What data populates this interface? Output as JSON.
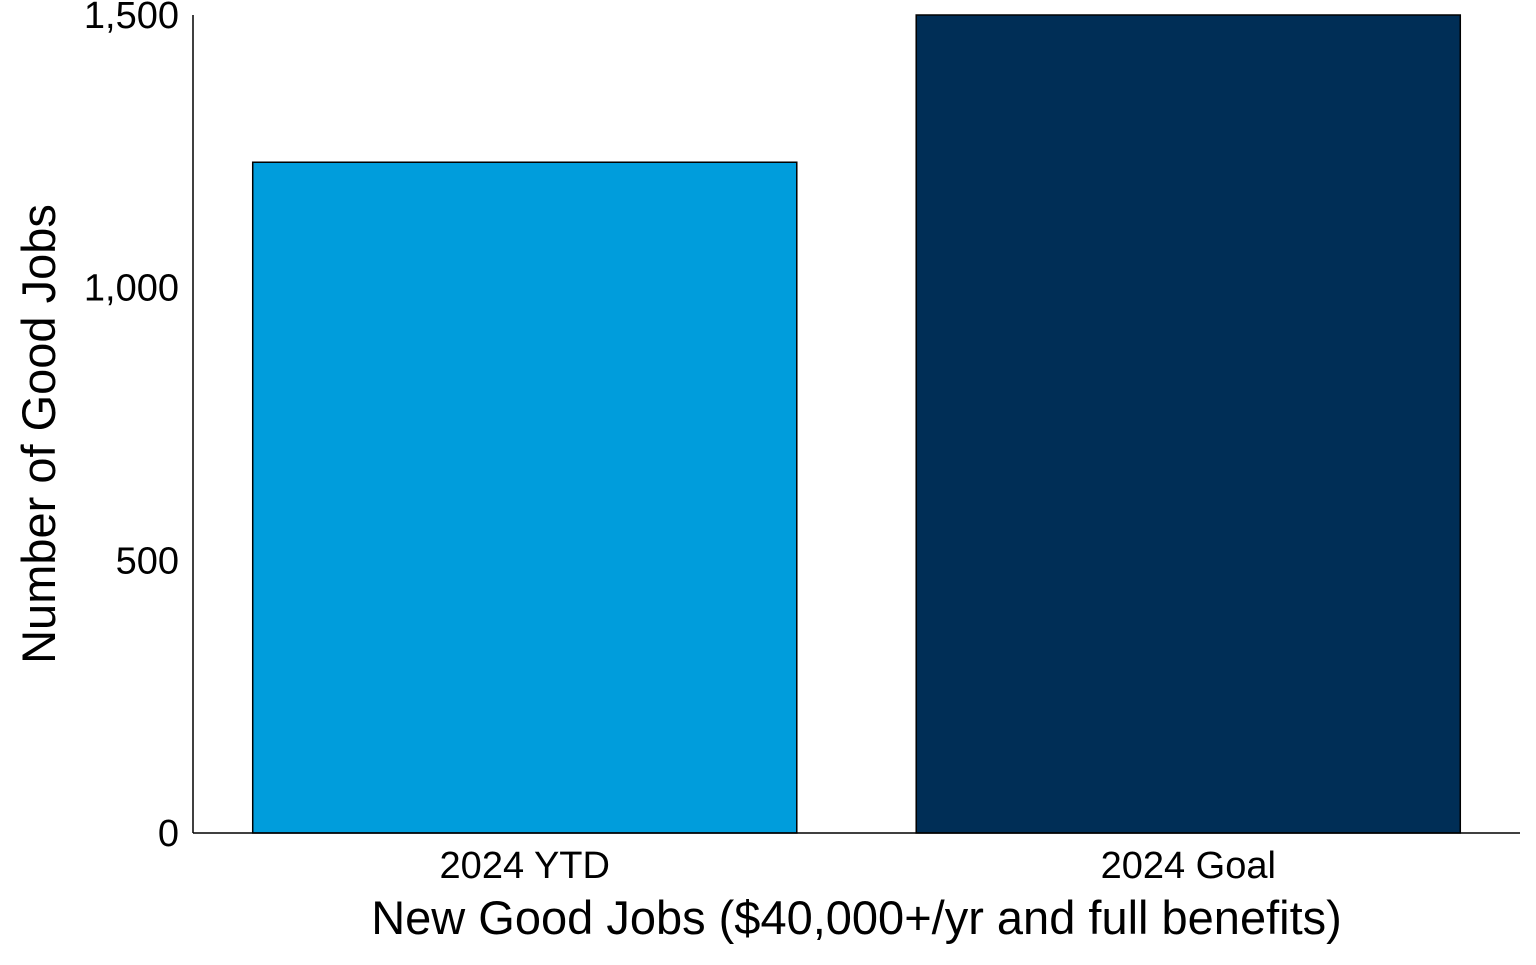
{
  "chart_data": {
    "type": "bar",
    "title": "",
    "categories": [
      "2024 YTD",
      "2024 Goal"
    ],
    "values": [
      1230,
      1500
    ],
    "colors": [
      "#009ddc",
      "#002e56"
    ],
    "xlabel": "New Good Jobs ($40,000+/yr and full benefits)",
    "ylabel": "Number of Good Jobs",
    "ylim": [
      0,
      1500
    ],
    "yticks": [
      0,
      500,
      1000,
      1500
    ],
    "ytick_labels": [
      "0",
      "500",
      "1,000",
      "1,500"
    ],
    "grid": false,
    "legend": "none"
  }
}
